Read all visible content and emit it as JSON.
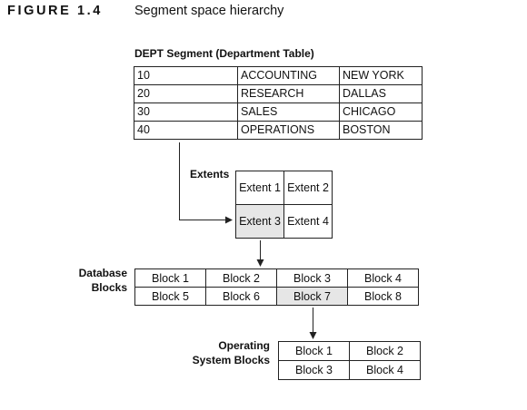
{
  "figure": {
    "label": "FIGURE 1.4",
    "title": "Segment space hierarchy"
  },
  "segment": {
    "title": "DEPT Segment (Department Table)",
    "rows": [
      [
        "10",
        "ACCOUNTING",
        "NEW YORK"
      ],
      [
        "20",
        "RESEARCH",
        "DALLAS"
      ],
      [
        "30",
        "SALES",
        "CHICAGO"
      ],
      [
        "40",
        "OPERATIONS",
        "BOSTON"
      ]
    ]
  },
  "extents": {
    "label": "Extents",
    "cells": [
      [
        "Extent 1",
        "Extent 2"
      ],
      [
        "Extent 3",
        "Extent 4"
      ]
    ],
    "highlighted": "Extent 3"
  },
  "database_blocks": {
    "label_line1": "Database",
    "label_line2": "Blocks",
    "cells": [
      [
        "Block 1",
        "Block 2",
        "Block 3",
        "Block 4"
      ],
      [
        "Block 5",
        "Block 6",
        "Block 7",
        "Block 8"
      ]
    ],
    "highlighted": "Block 7"
  },
  "os_blocks": {
    "label_line1": "Operating",
    "label_line2": "System Blocks",
    "cells": [
      [
        "Block 1",
        "Block 2"
      ],
      [
        "Block 3",
        "Block 4"
      ]
    ]
  },
  "colors": {
    "highlight": "#e6e6e6",
    "line": "#222222"
  }
}
